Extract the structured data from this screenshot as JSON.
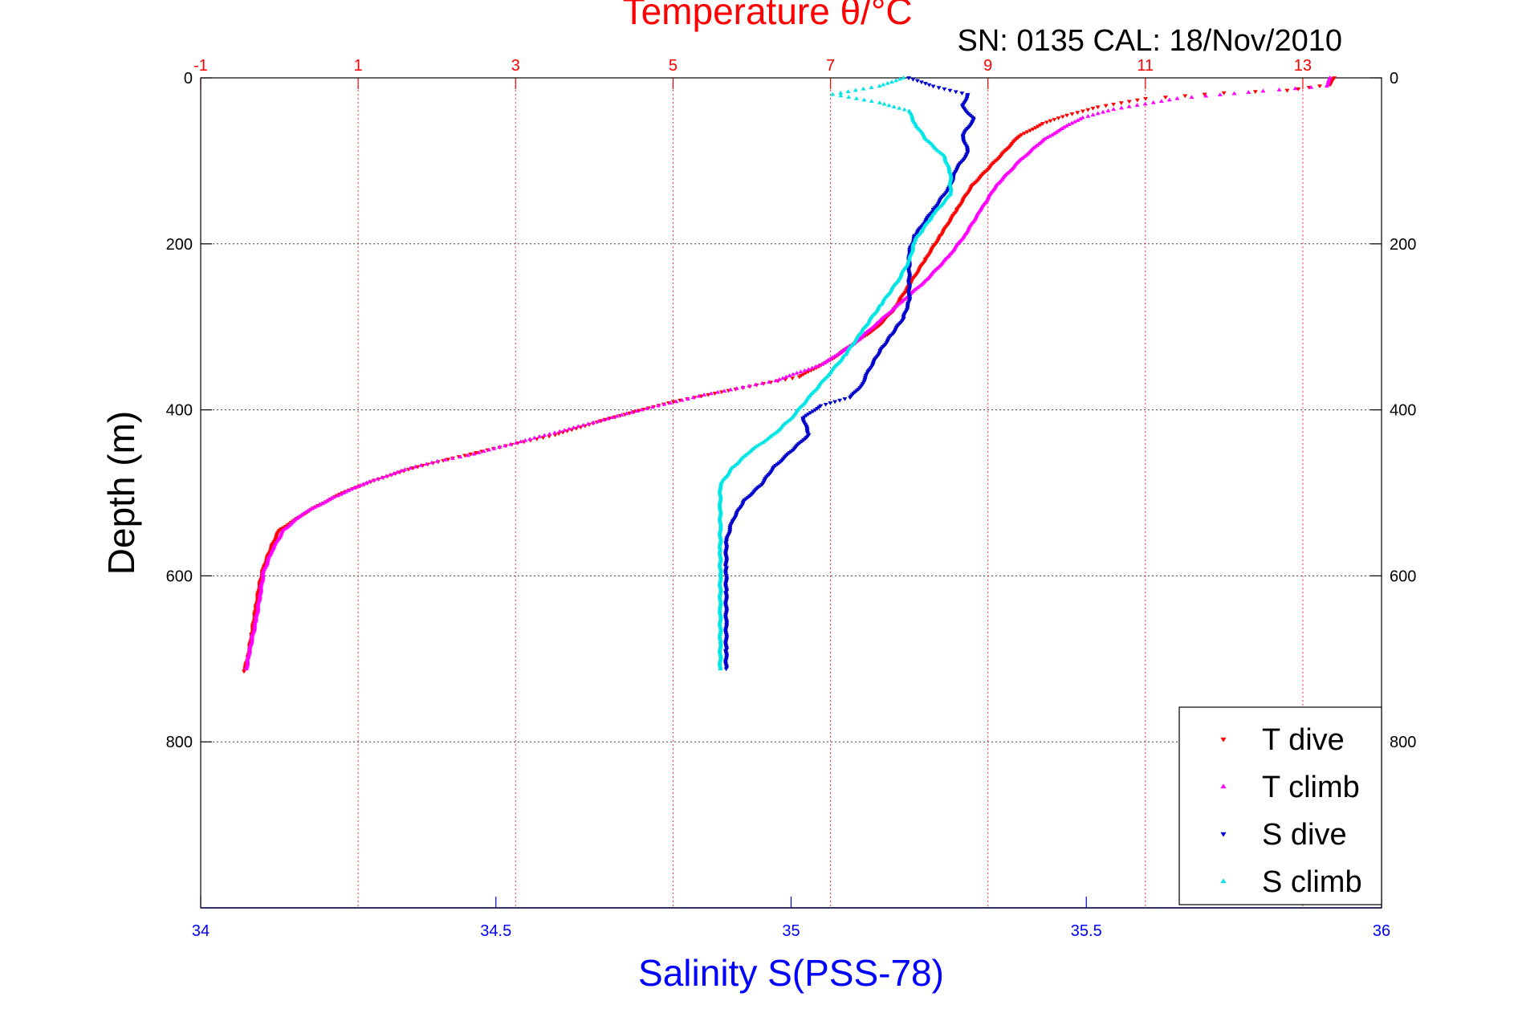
{
  "chart_data": {
    "type": "scatter",
    "title": "Temperature θ/°C",
    "subtitle": "SN: 0135  CAL: 18/Nov/2010",
    "ylabel": "Depth (m)",
    "xlabel_bottom": "Salinity S(PSS-78)",
    "xlabel_top": "Temperature θ/°C",
    "ylim": [
      0,
      1000
    ],
    "y_reversed": true,
    "y_ticks": [
      "0",
      "200",
      "400",
      "600",
      "800"
    ],
    "x_bottom_range": [
      34,
      36
    ],
    "x_bottom_ticks": [
      "34",
      "34.5",
      "35",
      "35.5",
      "36"
    ],
    "x_top_range": [
      -1,
      14
    ],
    "x_top_ticks": [
      "-1",
      "1",
      "3",
      "5",
      "7",
      "9",
      "11",
      "13"
    ],
    "grid": true,
    "legend_position": "bottom-right",
    "colors": {
      "temperature_axis": "#ff0000",
      "salinity_axis": "#0000ff",
      "t_dive": "#ff0000",
      "t_climb": "#ff00ff",
      "s_dive": "#0000cc",
      "s_climb": "#00e5e5"
    },
    "series": [
      {
        "name": "T dive",
        "axis": "temperature",
        "marker": "triangle-down",
        "color": "#ff0000",
        "points": [
          [
            13.4,
            0
          ],
          [
            13.35,
            8
          ],
          [
            12.8,
            15
          ],
          [
            12.0,
            18
          ],
          [
            11.0,
            25
          ],
          [
            10.4,
            35
          ],
          [
            10.0,
            45
          ],
          [
            9.7,
            55
          ],
          [
            9.4,
            70
          ],
          [
            9.2,
            90
          ],
          [
            9.0,
            110
          ],
          [
            8.8,
            130
          ],
          [
            8.6,
            160
          ],
          [
            8.4,
            190
          ],
          [
            8.2,
            220
          ],
          [
            8.0,
            250
          ],
          [
            7.8,
            280
          ],
          [
            7.6,
            300
          ],
          [
            7.3,
            320
          ],
          [
            7.0,
            340
          ],
          [
            6.6,
            360
          ],
          [
            5.8,
            375
          ],
          [
            5.0,
            390
          ],
          [
            4.2,
            410
          ],
          [
            3.5,
            430
          ],
          [
            2.8,
            445
          ],
          [
            2.2,
            458
          ],
          [
            1.7,
            470
          ],
          [
            1.2,
            485
          ],
          [
            0.8,
            500
          ],
          [
            0.4,
            520
          ],
          [
            0.0,
            545
          ],
          [
            -0.1,
            565
          ],
          [
            -0.2,
            590
          ],
          [
            -0.25,
            610
          ],
          [
            -0.3,
            640
          ],
          [
            -0.35,
            670
          ],
          [
            -0.4,
            700
          ],
          [
            -0.45,
            715
          ]
        ]
      },
      {
        "name": "T climb",
        "axis": "temperature",
        "marker": "triangle-up",
        "color": "#ff00ff",
        "points": [
          [
            13.35,
            0
          ],
          [
            13.3,
            10
          ],
          [
            12.5,
            16
          ],
          [
            11.4,
            25
          ],
          [
            10.6,
            38
          ],
          [
            10.2,
            48
          ],
          [
            10.0,
            58
          ],
          [
            9.7,
            75
          ],
          [
            9.4,
            100
          ],
          [
            9.1,
            130
          ],
          [
            8.9,
            160
          ],
          [
            8.7,
            190
          ],
          [
            8.5,
            215
          ],
          [
            8.2,
            245
          ],
          [
            7.9,
            270
          ],
          [
            7.6,
            295
          ],
          [
            7.3,
            320
          ],
          [
            6.9,
            345
          ],
          [
            6.3,
            365
          ],
          [
            5.4,
            382
          ],
          [
            4.6,
            400
          ],
          [
            3.8,
            420
          ],
          [
            3.0,
            440
          ],
          [
            2.4,
            455
          ],
          [
            2.0,
            462
          ],
          [
            1.6,
            472
          ],
          [
            1.1,
            488
          ],
          [
            0.7,
            505
          ],
          [
            0.3,
            525
          ],
          [
            0.05,
            545
          ],
          [
            -0.1,
            570
          ],
          [
            -0.2,
            595
          ],
          [
            -0.25,
            625
          ],
          [
            -0.3,
            655
          ],
          [
            -0.38,
            690
          ],
          [
            -0.42,
            712
          ]
        ]
      },
      {
        "name": "S dive",
        "axis": "salinity",
        "marker": "triangle-down",
        "color": "#0000cc",
        "points": [
          [
            35.2,
            0
          ],
          [
            35.24,
            10
          ],
          [
            35.3,
            20
          ],
          [
            35.29,
            35
          ],
          [
            35.31,
            50
          ],
          [
            35.29,
            70
          ],
          [
            35.3,
            90
          ],
          [
            35.28,
            110
          ],
          [
            35.27,
            130
          ],
          [
            35.24,
            160
          ],
          [
            35.21,
            190
          ],
          [
            35.2,
            210
          ],
          [
            35.2,
            230
          ],
          [
            35.2,
            250
          ],
          [
            35.2,
            270
          ],
          [
            35.19,
            290
          ],
          [
            35.17,
            310
          ],
          [
            35.15,
            330
          ],
          [
            35.13,
            355
          ],
          [
            35.12,
            370
          ],
          [
            35.1,
            385
          ],
          [
            35.05,
            395
          ],
          [
            35.02,
            410
          ],
          [
            35.03,
            430
          ],
          [
            35.0,
            450
          ],
          [
            34.97,
            470
          ],
          [
            34.95,
            490
          ],
          [
            34.92,
            510
          ],
          [
            34.9,
            535
          ],
          [
            34.89,
            560
          ],
          [
            34.89,
            590
          ],
          [
            34.89,
            620
          ],
          [
            34.89,
            660
          ],
          [
            34.89,
            690
          ],
          [
            34.89,
            712
          ]
        ]
      },
      {
        "name": "S climb",
        "axis": "salinity",
        "marker": "triangle-up",
        "color": "#00e5e5",
        "points": [
          [
            35.19,
            0
          ],
          [
            35.15,
            10
          ],
          [
            35.07,
            20
          ],
          [
            35.15,
            30
          ],
          [
            35.2,
            40
          ],
          [
            35.21,
            55
          ],
          [
            35.23,
            75
          ],
          [
            35.26,
            95
          ],
          [
            35.27,
            115
          ],
          [
            35.27,
            140
          ],
          [
            35.24,
            165
          ],
          [
            35.21,
            195
          ],
          [
            35.2,
            220
          ],
          [
            35.18,
            245
          ],
          [
            35.15,
            275
          ],
          [
            35.12,
            305
          ],
          [
            35.09,
            335
          ],
          [
            35.06,
            360
          ],
          [
            35.03,
            385
          ],
          [
            35.0,
            410
          ],
          [
            34.97,
            430
          ],
          [
            34.93,
            450
          ],
          [
            34.9,
            470
          ],
          [
            34.88,
            490
          ],
          [
            34.88,
            515
          ],
          [
            34.88,
            540
          ],
          [
            34.88,
            570
          ],
          [
            34.88,
            600
          ],
          [
            34.88,
            640
          ],
          [
            34.88,
            680
          ],
          [
            34.88,
            712
          ]
        ]
      }
    ]
  }
}
